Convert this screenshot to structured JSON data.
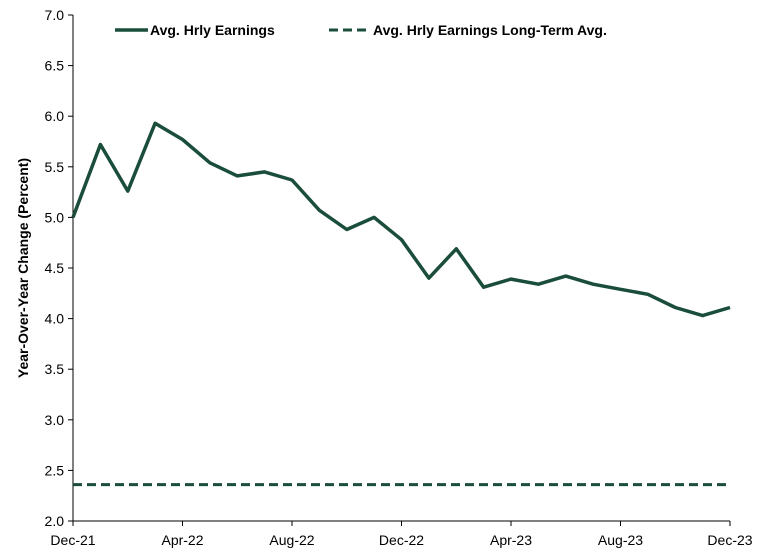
{
  "chart_data": {
    "type": "line",
    "title": "",
    "xlabel": "",
    "ylabel": "Year-Over-Year Change (Percent)",
    "ylim": [
      2.0,
      7.0
    ],
    "yticks": [
      "2.0",
      "2.5",
      "3.0",
      "3.5",
      "4.0",
      "4.5",
      "5.0",
      "5.5",
      "6.0",
      "6.5",
      "7.0"
    ],
    "x_tick_labels": [
      "Dec-21",
      "Apr-22",
      "Aug-22",
      "Dec-22",
      "Apr-23",
      "Aug-23",
      "Dec-23"
    ],
    "x": [
      "Dec-21",
      "Jan-22",
      "Feb-22",
      "Mar-22",
      "Apr-22",
      "May-22",
      "Jun-22",
      "Jul-22",
      "Aug-22",
      "Sep-22",
      "Oct-22",
      "Nov-22",
      "Dec-22",
      "Jan-23",
      "Feb-23",
      "Mar-23",
      "Apr-23",
      "May-23",
      "Jun-23",
      "Jul-23",
      "Aug-23",
      "Sep-23",
      "Oct-23",
      "Nov-23",
      "Dec-23"
    ],
    "grid": false,
    "legend_position": "top",
    "series": [
      {
        "name": "Avg. Hrly Earnings",
        "style": "solid",
        "color": "#1a4d3a",
        "values": [
          5.0,
          5.72,
          5.26,
          5.93,
          5.77,
          5.54,
          5.41,
          5.45,
          5.37,
          5.07,
          4.88,
          5.0,
          4.78,
          4.4,
          4.69,
          4.31,
          4.39,
          4.34,
          4.42,
          4.34,
          4.29,
          4.24,
          4.11,
          4.03,
          4.11
        ]
      },
      {
        "name": "Avg. Hrly Earnings Long-Term Avg.",
        "style": "dashed",
        "color": "#1a4d3a",
        "values": [
          2.36,
          2.36,
          2.36,
          2.36,
          2.36,
          2.36,
          2.36,
          2.36,
          2.36,
          2.36,
          2.36,
          2.36,
          2.36,
          2.36,
          2.36,
          2.36,
          2.36,
          2.36,
          2.36,
          2.36,
          2.36,
          2.36,
          2.36,
          2.36,
          2.36
        ]
      }
    ]
  }
}
